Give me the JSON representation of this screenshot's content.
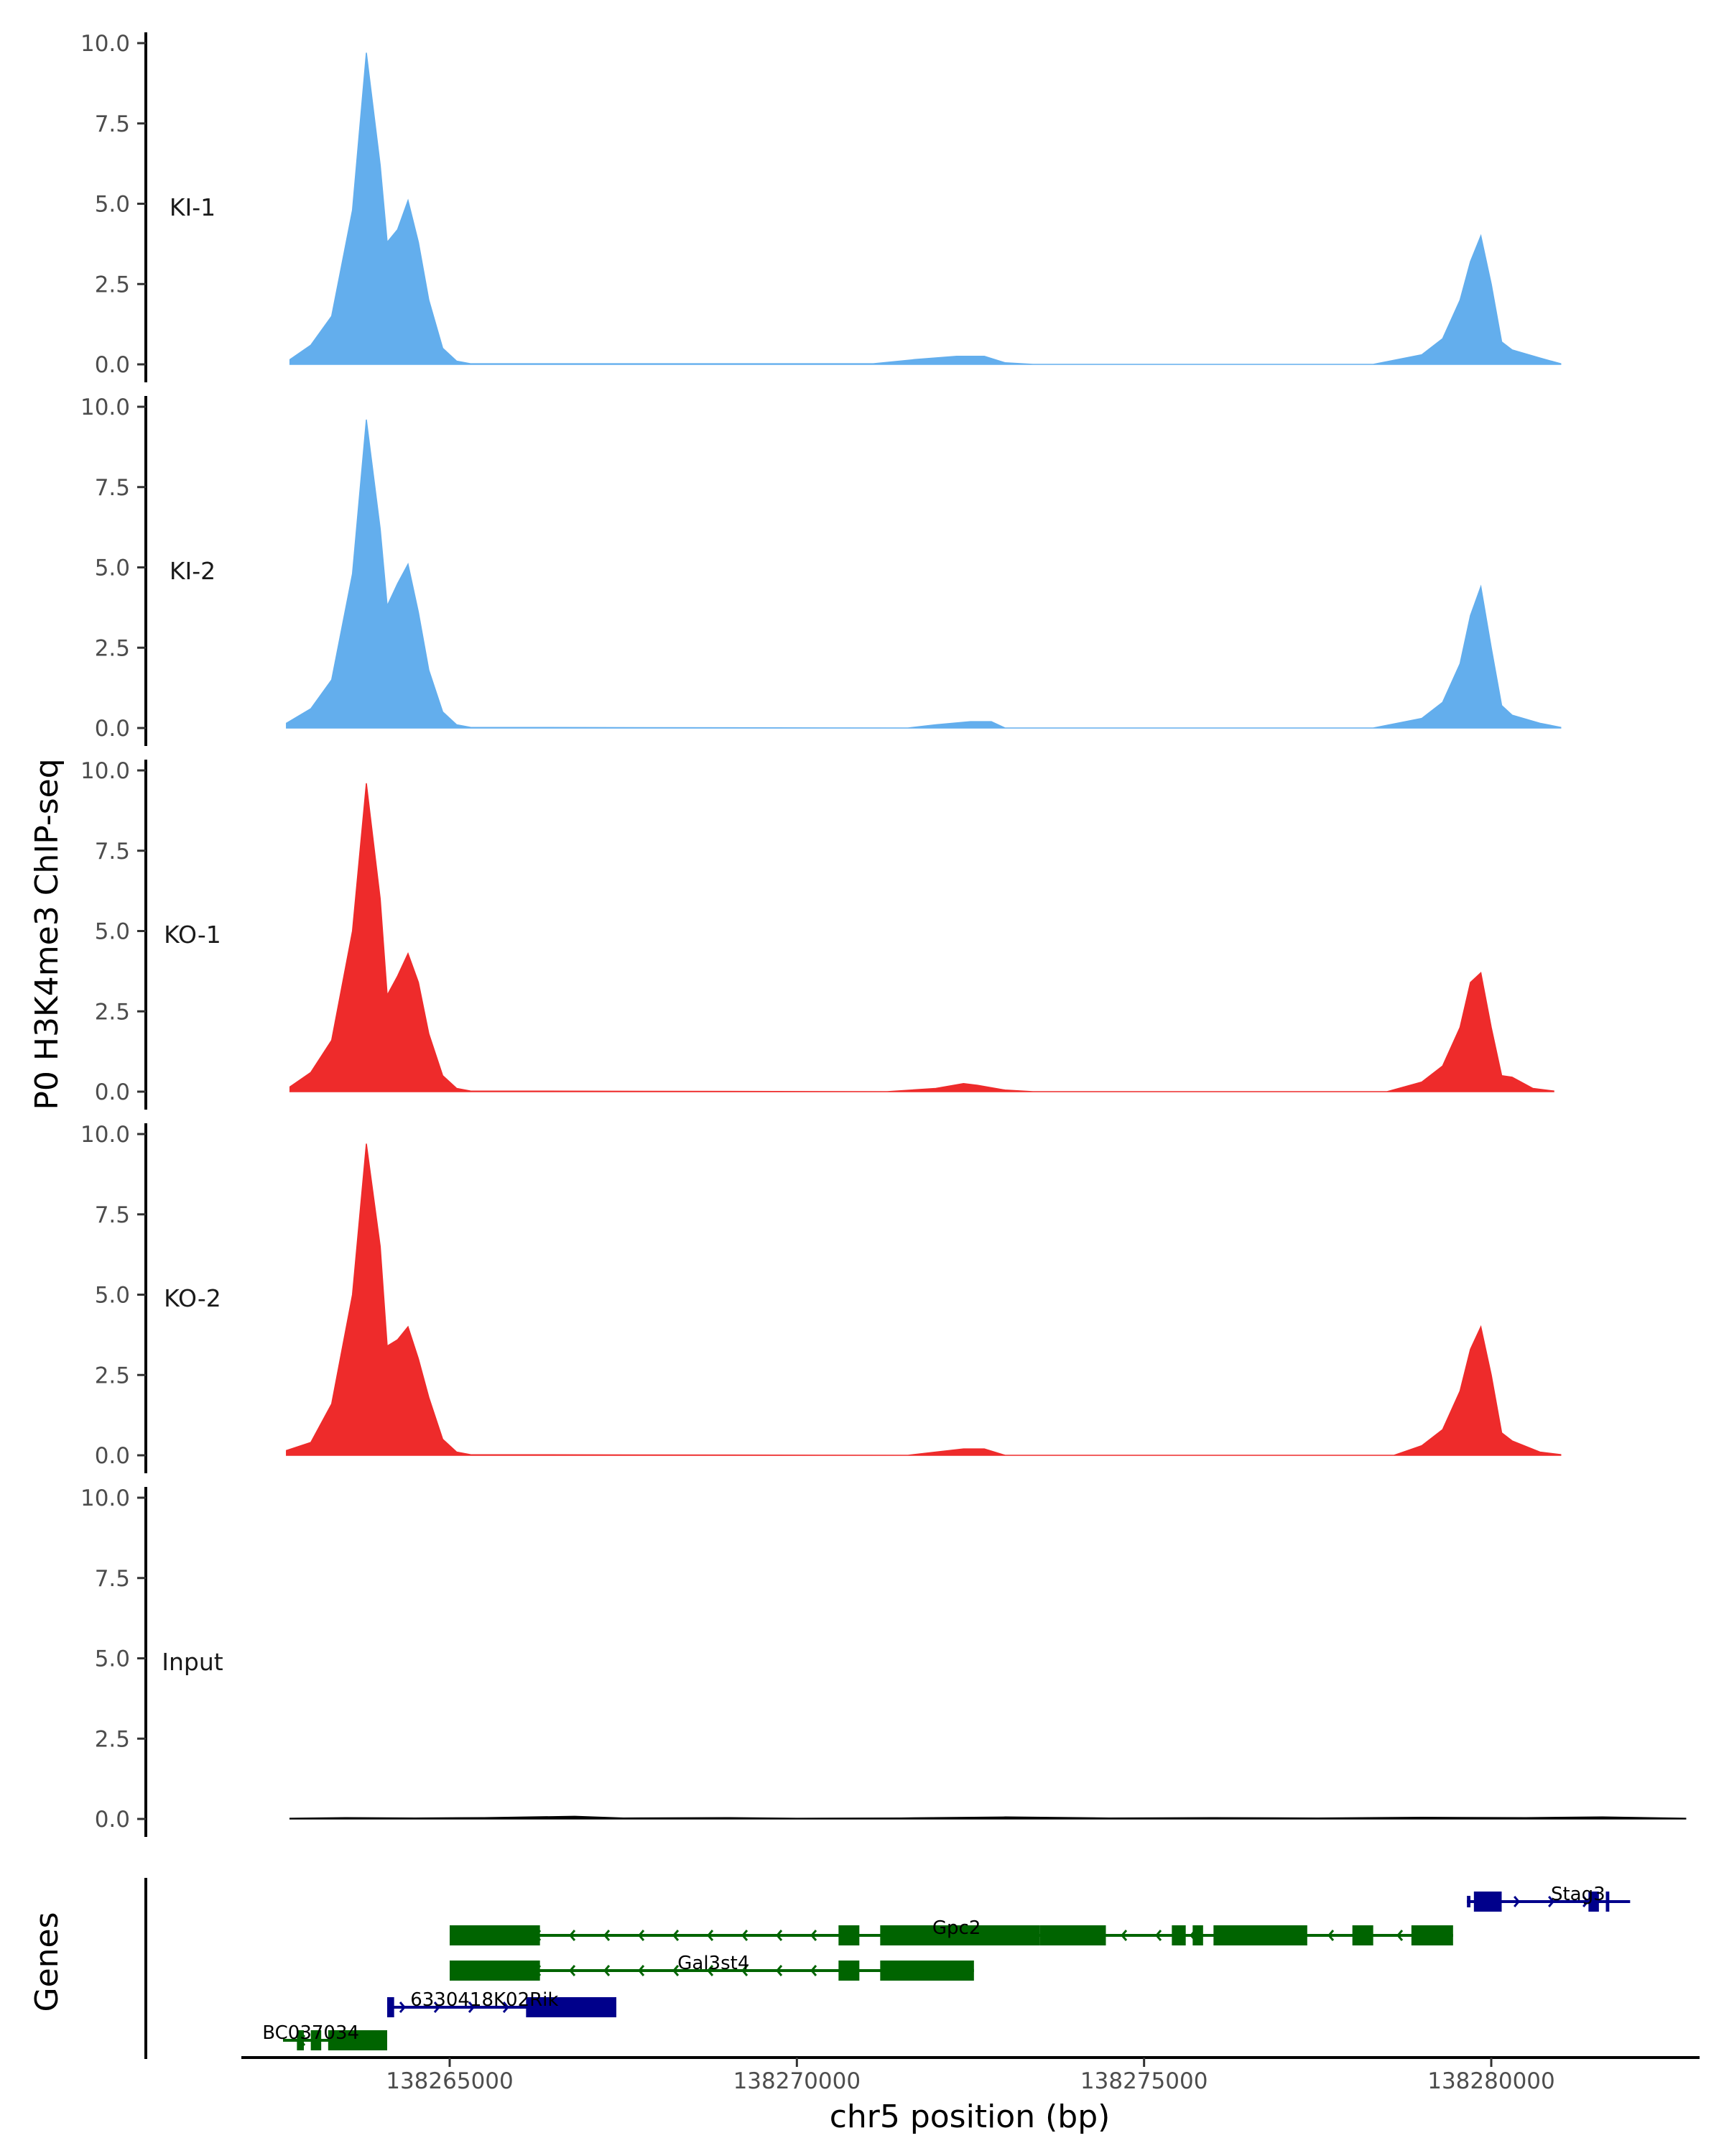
{
  "chart_data": {
    "type": "area",
    "title": "",
    "ylabel": "P0 H3K4me3 ChIP-seq",
    "xlabel": "chr5 position (bp)",
    "genes_label": "Genes",
    "xlim": [
      138262000,
      138283000
    ],
    "ylim": [
      0,
      10
    ],
    "x_ticks": [
      138265000,
      138270000,
      138275000,
      138280000
    ],
    "x_tick_labels": [
      "138265000",
      "138270000",
      "138275000",
      "138280000"
    ],
    "y_ticks": [
      0,
      2.5,
      5,
      7.5,
      10
    ],
    "y_tick_labels": [
      "0.0",
      "2.5",
      "5.0",
      "7.5",
      "10.0"
    ],
    "tracks": [
      {
        "name": "KI-1",
        "color": "#63aeed",
        "x": [
          138262700,
          138263000,
          138263300,
          138263600,
          138263800,
          138264000,
          138264100,
          138264250,
          138264400,
          138264550,
          138264700,
          138264900,
          138265100,
          138265300,
          138271100,
          138271700,
          138272300,
          138272700,
          138273000,
          138273400,
          138278300,
          138279000,
          138279300,
          138279550,
          138279700,
          138279850,
          138280000,
          138280150,
          138280300,
          138280700,
          138281000
        ],
        "values": [
          0.15,
          0.6,
          1.5,
          4.8,
          9.7,
          6.2,
          3.8,
          4.2,
          5.1,
          3.8,
          2.0,
          0.5,
          0.1,
          0.02,
          0.02,
          0.15,
          0.25,
          0.25,
          0.05,
          0.0,
          0.0,
          0.3,
          0.8,
          2.0,
          3.2,
          4.0,
          2.5,
          0.7,
          0.45,
          0.2,
          0.02
        ]
      },
      {
        "name": "KI-2",
        "color": "#63aeed",
        "x": [
          138262650,
          138263000,
          138263300,
          138263600,
          138263800,
          138264000,
          138264100,
          138264250,
          138264400,
          138264550,
          138264700,
          138264900,
          138265100,
          138265300,
          138271600,
          138272000,
          138272500,
          138272800,
          138273000,
          138278300,
          138279000,
          138279300,
          138279550,
          138279700,
          138279850,
          138280000,
          138280150,
          138280300,
          138280700,
          138281000
        ],
        "values": [
          0.15,
          0.6,
          1.5,
          4.8,
          9.6,
          6.2,
          3.8,
          4.5,
          5.1,
          3.6,
          1.8,
          0.5,
          0.1,
          0.02,
          0.0,
          0.1,
          0.2,
          0.2,
          0.0,
          0.0,
          0.3,
          0.8,
          2.0,
          3.5,
          4.4,
          2.5,
          0.7,
          0.4,
          0.15,
          0.02
        ]
      },
      {
        "name": "KO-1",
        "color": "#ee2b2b",
        "x": [
          138262700,
          138263000,
          138263300,
          138263600,
          138263800,
          138264000,
          138264100,
          138264250,
          138264400,
          138264550,
          138264700,
          138264900,
          138265100,
          138265300,
          138271300,
          138272000,
          138272400,
          138272600,
          138273000,
          138273400,
          138278500,
          138279000,
          138279300,
          138279550,
          138279700,
          138279850,
          138280000,
          138280150,
          138280300,
          138280600,
          138280900
        ],
        "values": [
          0.15,
          0.6,
          1.6,
          5.0,
          9.6,
          6.0,
          3.0,
          3.6,
          4.3,
          3.4,
          1.8,
          0.5,
          0.1,
          0.02,
          0.0,
          0.1,
          0.25,
          0.2,
          0.05,
          0.0,
          0.0,
          0.3,
          0.8,
          2.0,
          3.4,
          3.7,
          2.0,
          0.5,
          0.45,
          0.1,
          0.02
        ]
      },
      {
        "name": "KO-2",
        "color": "#ee2b2b",
        "x": [
          138262650,
          138263000,
          138263300,
          138263600,
          138263800,
          138264000,
          138264100,
          138264250,
          138264400,
          138264550,
          138264700,
          138264900,
          138265100,
          138265300,
          138271600,
          138272000,
          138272400,
          138272700,
          138273000,
          138278600,
          138279000,
          138279300,
          138279550,
          138279700,
          138279850,
          138280000,
          138280150,
          138280300,
          138280700,
          138281000
        ],
        "values": [
          0.15,
          0.4,
          1.6,
          5.0,
          9.7,
          6.5,
          3.4,
          3.6,
          4.0,
          3.0,
          1.8,
          0.5,
          0.1,
          0.02,
          0.0,
          0.1,
          0.2,
          0.2,
          0.0,
          0.0,
          0.3,
          0.8,
          2.0,
          3.3,
          4.0,
          2.5,
          0.7,
          0.45,
          0.1,
          0.02
        ]
      },
      {
        "name": "Input",
        "color": "#000000",
        "x": [
          138262700,
          138263500,
          138264500,
          138265500,
          138266800,
          138267500,
          138269000,
          138270000,
          138271500,
          138273000,
          138274500,
          138276000,
          138277500,
          138279000,
          138280500,
          138281600,
          138282800
        ],
        "values": [
          0.02,
          0.04,
          0.03,
          0.04,
          0.08,
          0.03,
          0.04,
          0.02,
          0.03,
          0.06,
          0.03,
          0.04,
          0.03,
          0.05,
          0.04,
          0.06,
          0.02
        ]
      }
    ],
    "genes": [
      {
        "name": "Stag3",
        "strand": "+",
        "color": "#00008b",
        "row": 0,
        "start": 138279650,
        "end": 138282000,
        "exons": [
          [
            138279650,
            138279700,
            "utr"
          ],
          [
            138279750,
            138280150,
            "cds"
          ],
          [
            138281400,
            138281550,
            "cds"
          ],
          [
            138281650,
            138281700,
            "cds"
          ]
        ],
        "label_x": 138281250
      },
      {
        "name": "Gpc2",
        "strand": "-",
        "color": "#006400",
        "row": 1,
        "start": 138265000,
        "end": 138279450,
        "exons": [
          [
            138265000,
            138266300,
            "cds"
          ],
          [
            138270600,
            138270900,
            "cds"
          ],
          [
            138271200,
            138273500,
            "cds"
          ],
          [
            138273500,
            138274450,
            "cds"
          ],
          [
            138275400,
            138275600,
            "cds"
          ],
          [
            138275700,
            138275850,
            "cds"
          ],
          [
            138276000,
            138276700,
            "cds"
          ],
          [
            138276700,
            138277350,
            "cds"
          ],
          [
            138278000,
            138278300,
            "cds"
          ],
          [
            138278850,
            138279450,
            "cds"
          ]
        ],
        "label_x": 138272300
      },
      {
        "name": "Gal3st4",
        "strand": "-",
        "color": "#006400",
        "row": 2,
        "start": 138265000,
        "end": 138272550,
        "exons": [
          [
            138265000,
            138266300,
            "cds"
          ],
          [
            138270600,
            138270900,
            "cds"
          ],
          [
            138271200,
            138272550,
            "cds"
          ]
        ],
        "label_x": 138268800
      },
      {
        "name": "6330418K02Rik",
        "strand": "+",
        "color": "#00008b",
        "row": 3,
        "start": 138264100,
        "end": 138267400,
        "exons": [
          [
            138264100,
            138264200,
            "cds"
          ],
          [
            138266100,
            138267400,
            "cds"
          ]
        ],
        "label_x": 138265500
      },
      {
        "name": "BC037034",
        "strand": "-",
        "color": "#006400",
        "row": 4,
        "start": 138262600,
        "end": 138264100,
        "exons": [
          [
            138262800,
            138262900,
            "cds"
          ],
          [
            138263000,
            138263150,
            "cds"
          ],
          [
            138263250,
            138264100,
            "cds"
          ]
        ],
        "label_x": 138263000
      }
    ]
  }
}
